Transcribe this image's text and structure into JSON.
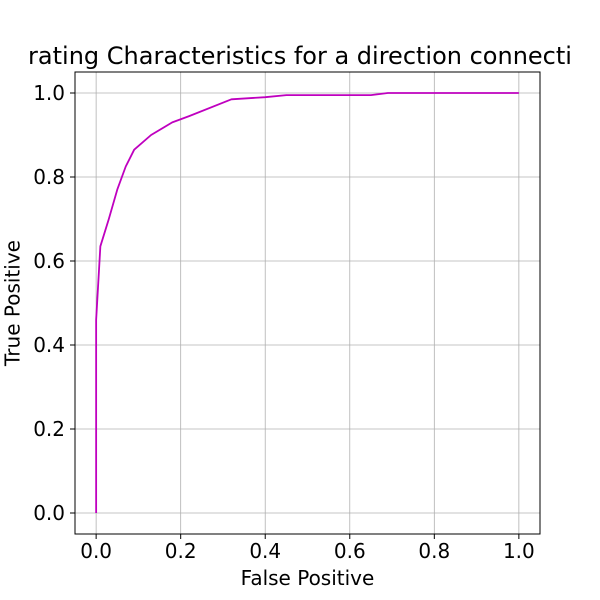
{
  "chart_data": {
    "type": "line",
    "title": "rating Characteristics for a direction connecti",
    "xlabel": "False Positive",
    "ylabel": "True Positive",
    "xlim": [
      -0.05,
      1.05
    ],
    "ylim": [
      -0.05,
      1.05
    ],
    "xticks": [
      "0.0",
      "0.2",
      "0.4",
      "0.6",
      "0.8",
      "1.0"
    ],
    "yticks": [
      "0.0",
      "0.2",
      "0.4",
      "0.6",
      "0.8",
      "1.0"
    ],
    "grid": true,
    "legend": "none",
    "series": [
      {
        "color": "#bf00bf",
        "x": [
          0.0,
          0.0,
          0.01,
          0.03,
          0.05,
          0.07,
          0.09,
          0.13,
          0.18,
          0.22,
          0.32,
          0.4,
          0.45,
          0.65,
          0.69,
          1.0
        ],
        "y": [
          0.0,
          0.46,
          0.635,
          0.7,
          0.77,
          0.825,
          0.865,
          0.9,
          0.93,
          0.945,
          0.985,
          0.99,
          0.995,
          0.995,
          1.0,
          1.0
        ]
      }
    ]
  }
}
